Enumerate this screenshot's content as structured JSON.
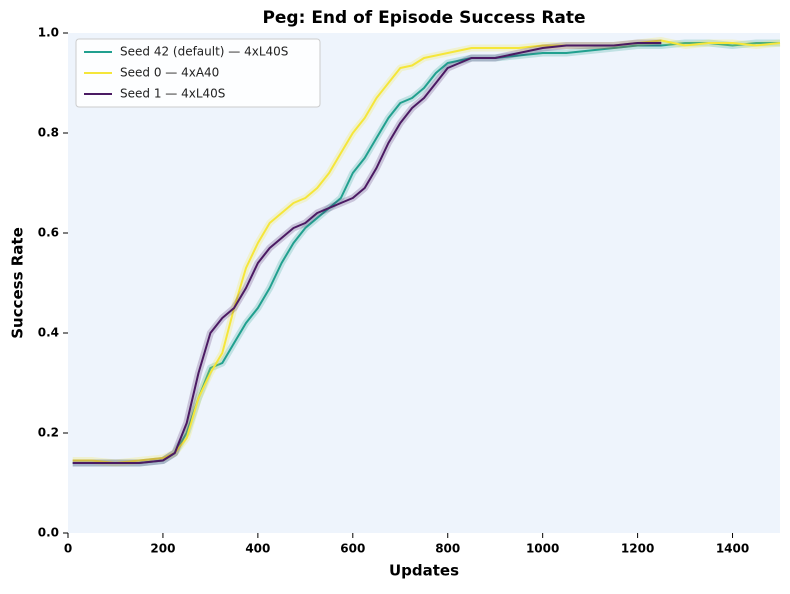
{
  "chart_data": {
    "type": "line",
    "title": "Peg: End of Episode Success Rate",
    "x_label": "Updates",
    "y_label": "Success Rate",
    "x": [
      10,
      50,
      100,
      150,
      200,
      225,
      250,
      275,
      300,
      325,
      350,
      375,
      400,
      425,
      450,
      475,
      500,
      525,
      550,
      575,
      600,
      625,
      650,
      675,
      700,
      725,
      750,
      775,
      800,
      850,
      900,
      950,
      1000,
      1050,
      1100,
      1150,
      1200,
      1250,
      1300,
      1350,
      1400,
      1450,
      1500
    ],
    "series": [
      {
        "name": "Seed 42 (default) — 4xL40S",
        "color": "#21a08f",
        "values": [
          0.14,
          0.14,
          0.14,
          0.14,
          0.145,
          0.16,
          0.2,
          0.27,
          0.33,
          0.34,
          0.38,
          0.42,
          0.45,
          0.49,
          0.54,
          0.58,
          0.61,
          0.63,
          0.65,
          0.67,
          0.72,
          0.75,
          0.79,
          0.83,
          0.86,
          0.87,
          0.89,
          0.92,
          0.94,
          0.95,
          0.95,
          0.955,
          0.96,
          0.96,
          0.965,
          0.97,
          0.975,
          0.975,
          0.98,
          0.98,
          0.975,
          0.98,
          0.98
        ]
      },
      {
        "name": "Seed 0 — 4xA40",
        "color": "#f5e63a",
        "values": [
          0.145,
          0.145,
          0.14,
          0.145,
          0.15,
          0.16,
          0.19,
          0.27,
          0.32,
          0.36,
          0.45,
          0.53,
          0.58,
          0.62,
          0.64,
          0.66,
          0.67,
          0.69,
          0.72,
          0.76,
          0.8,
          0.83,
          0.87,
          0.9,
          0.93,
          0.935,
          0.95,
          0.955,
          0.96,
          0.97,
          0.97,
          0.97,
          0.975,
          0.975,
          0.975,
          0.975,
          0.98,
          0.985,
          0.975,
          0.98,
          0.98,
          0.975,
          0.98
        ]
      },
      {
        "name": "Seed 1 — 4xL40S",
        "color": "#4b1a63",
        "values": [
          0.14,
          0.14,
          0.14,
          0.14,
          0.145,
          0.16,
          0.22,
          0.32,
          0.4,
          0.43,
          0.45,
          0.49,
          0.54,
          0.57,
          0.59,
          0.61,
          0.62,
          0.64,
          0.65,
          0.66,
          0.67,
          0.69,
          0.73,
          0.78,
          0.82,
          0.85,
          0.87,
          0.9,
          0.93,
          0.95,
          0.95,
          0.96,
          0.97,
          0.975,
          0.975,
          0.975,
          0.98,
          0.98,
          null,
          null,
          null,
          null,
          null
        ]
      }
    ],
    "xlim": [
      0,
      1500
    ],
    "xticks": [
      0,
      200,
      400,
      600,
      800,
      1000,
      1200,
      1400
    ],
    "ylim": [
      0,
      1
    ],
    "yticks": [
      {
        "value": 0,
        "label": "0.0"
      },
      0.2,
      0.4,
      0.6,
      0.8,
      {
        "value": 1,
        "label": "1.0"
      }
    ],
    "legend": "upper left",
    "background": "#eef4fc"
  }
}
